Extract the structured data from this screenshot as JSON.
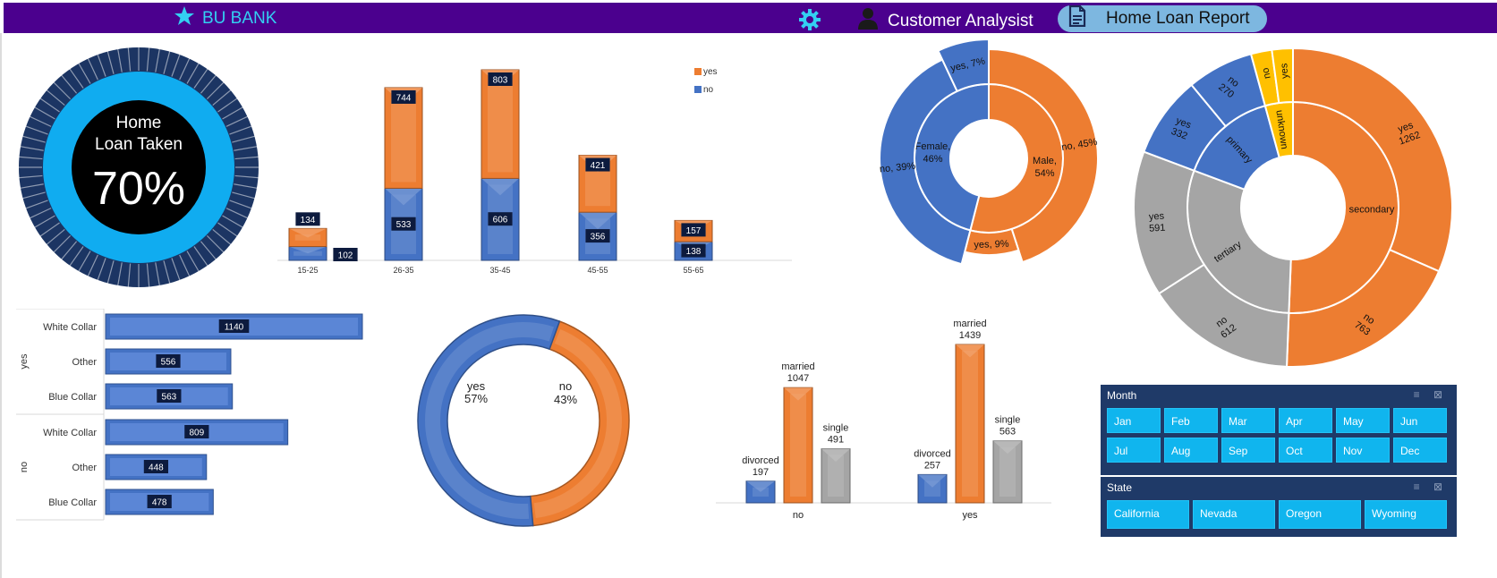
{
  "header": {
    "brand": "BU BANK",
    "user_label": "Customer Analysist",
    "report_label": "Home Loan Report",
    "colors": {
      "bar": "#4b008e",
      "accent": "#33d0f2",
      "pill": "#7db7e0"
    },
    "icons": [
      "star-icon",
      "gear-icon",
      "user-icon",
      "document-icon"
    ]
  },
  "kpi": {
    "line1": "Home",
    "line2": "Loan Taken",
    "value": "70%"
  },
  "chart_data": [
    {
      "type": "bar",
      "id": "age",
      "stacked": true,
      "categories": [
        "15-25",
        "26-35",
        "35-45",
        "45-55",
        "55-65"
      ],
      "series": [
        {
          "name": "yes",
          "color": "#ed7d31",
          "values": [
            134,
            744,
            803,
            421,
            157
          ]
        },
        {
          "name": "no",
          "color": "#4472c4",
          "values": [
            102,
            533,
            606,
            356,
            138
          ]
        }
      ],
      "legend": "top-right"
    },
    {
      "type": "pie",
      "id": "gender",
      "subtype": "sunburst",
      "inner": [
        {
          "label": "Female,",
          "pct": "46%",
          "value": 46,
          "color": "#4472c4"
        },
        {
          "label": "Male,",
          "pct": "54%",
          "value": 54,
          "color": "#ed7d31"
        }
      ],
      "outer": [
        {
          "label": "no, 39%",
          "value": 39,
          "color": "#4472c4"
        },
        {
          "label": "yes, 7%",
          "value": 7,
          "color": "#4472c4"
        },
        {
          "label": "no, 45%",
          "value": 45,
          "color": "#ed7d31"
        },
        {
          "label": "yes, 9%",
          "value": 9,
          "color": "#ed7d31"
        }
      ]
    },
    {
      "type": "pie",
      "id": "education",
      "subtype": "sunburst",
      "inner": [
        {
          "label": "secondary",
          "value": 2025,
          "color": "#ed7d31"
        },
        {
          "label": "tertiary",
          "value": 1203,
          "color": "#a5a5a5"
        },
        {
          "label": "primary",
          "value": 602,
          "color": "#4472c4"
        },
        {
          "label": "unknown",
          "value": 170,
          "color": "#ffc000"
        }
      ],
      "outer": [
        {
          "label": "yes",
          "value": 1262,
          "color": "#ed7d31"
        },
        {
          "label": "no",
          "value": 763,
          "color": "#ed7d31"
        },
        {
          "label": "no",
          "value": 612,
          "color": "#a5a5a5"
        },
        {
          "label": "yes",
          "value": 591,
          "color": "#a5a5a5"
        },
        {
          "label": "yes",
          "value": 332,
          "color": "#4472c4"
        },
        {
          "label": "no",
          "value": 270,
          "color": "#4472c4"
        },
        {
          "label": "no",
          "value": 85,
          "color": "#ffc000"
        },
        {
          "label": "yes",
          "value": 85,
          "color": "#ffc000"
        }
      ]
    },
    {
      "type": "bar",
      "id": "job",
      "orientation": "horizontal",
      "groups": [
        {
          "name": "yes",
          "items": [
            {
              "label": "White Collar",
              "value": 1140
            },
            {
              "label": "Other",
              "value": 556
            },
            {
              "label": "Blue Collar",
              "value": 563
            }
          ]
        },
        {
          "name": "no",
          "items": [
            {
              "label": "White Collar",
              "value": 809
            },
            {
              "label": "Other",
              "value": 448
            },
            {
              "label": "Blue Collar",
              "value": 478
            }
          ]
        }
      ],
      "color": "#4472c4"
    },
    {
      "type": "pie",
      "id": "overall",
      "subtype": "donut",
      "slices": [
        {
          "label": "yes",
          "pct": "57%",
          "value": 57,
          "color": "#4472c4"
        },
        {
          "label": "no",
          "pct": "43%",
          "value": 43,
          "color": "#ed7d31"
        }
      ]
    },
    {
      "type": "bar",
      "id": "marital",
      "categories": [
        "no",
        "yes"
      ],
      "series": [
        {
          "name": "divorced",
          "color": "#4472c4",
          "values": [
            197,
            257
          ]
        },
        {
          "name": "married",
          "color": "#ed7d31",
          "values": [
            1047,
            1439
          ]
        },
        {
          "name": "single",
          "color": "#a5a5a5",
          "values": [
            491,
            563
          ]
        }
      ]
    }
  ],
  "slicers": {
    "month": {
      "title": "Month",
      "items": [
        "Jan",
        "Feb",
        "Mar",
        "Apr",
        "May",
        "Jun",
        "Jul",
        "Aug",
        "Sep",
        "Oct",
        "Nov",
        "Dec"
      ]
    },
    "state": {
      "title": "State",
      "items": [
        "California",
        "Nevada",
        "Oregon",
        "Wyoming"
      ]
    }
  }
}
